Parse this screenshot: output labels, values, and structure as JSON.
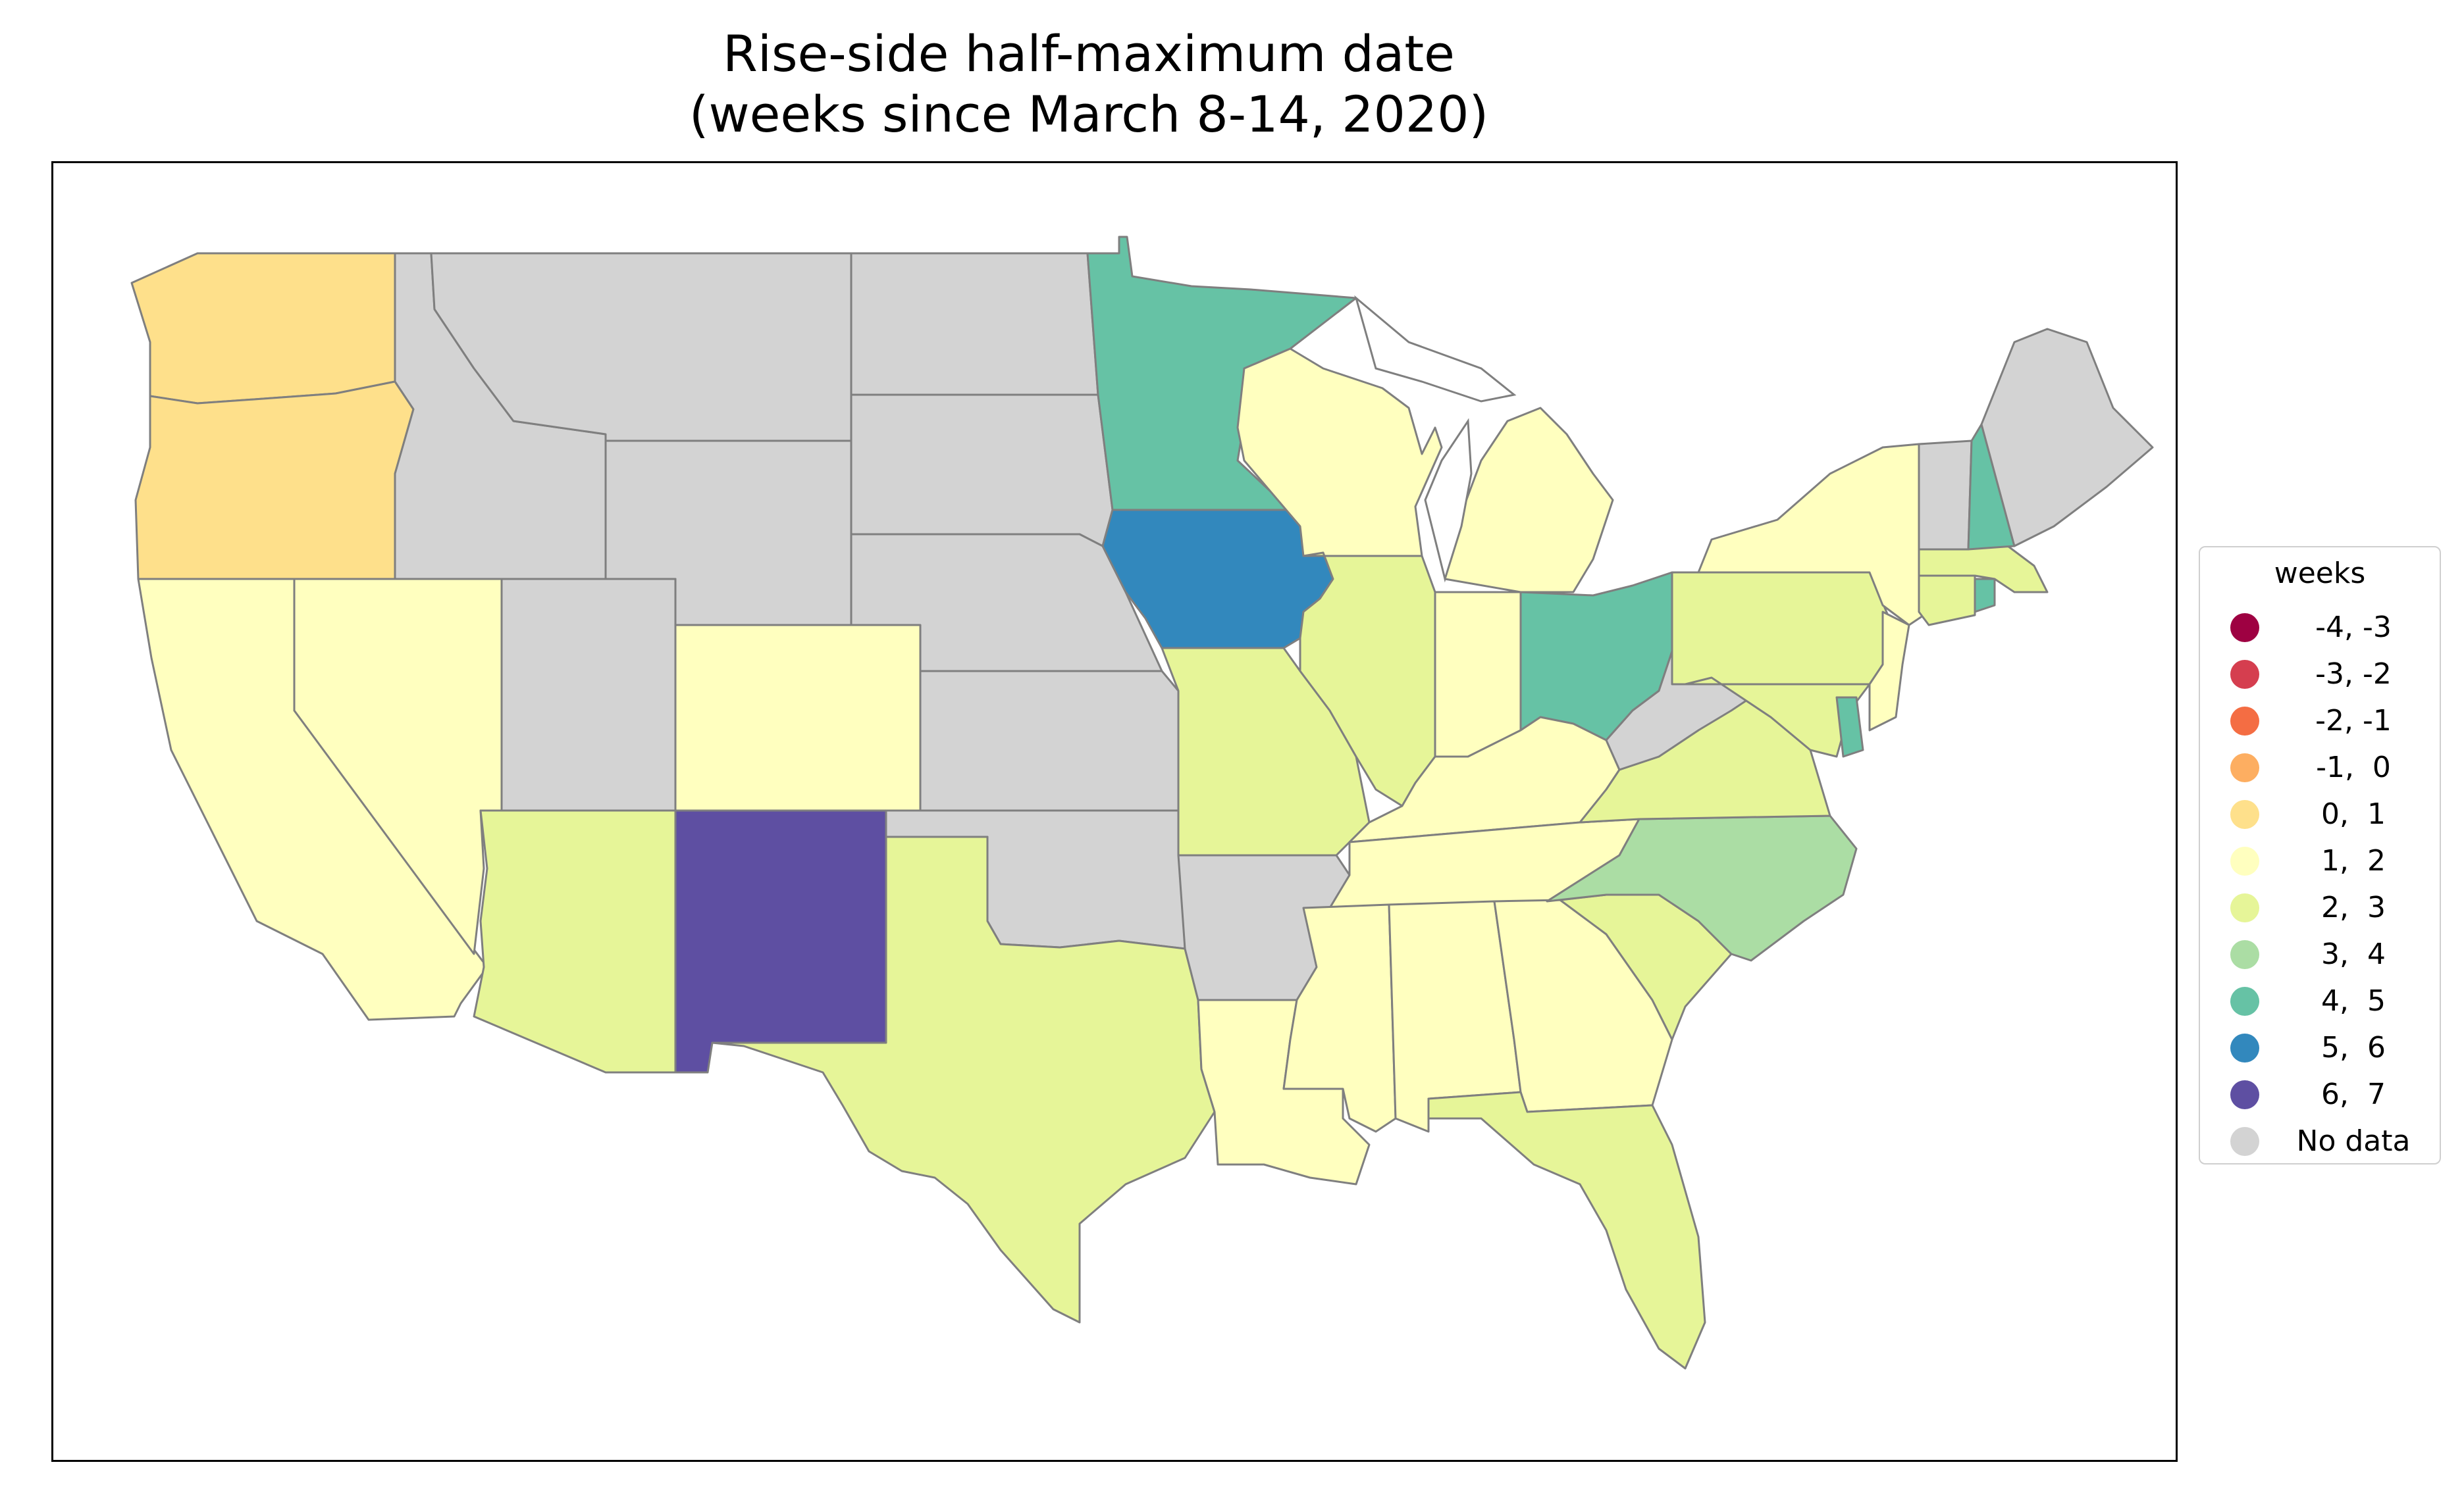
{
  "title": {
    "line1": "Rise-side half-maximum date",
    "line2": "(weeks since March 8-14, 2020)"
  },
  "legend": {
    "title": "weeks",
    "items": [
      {
        "label": "-4, -3",
        "color": "#9e0142"
      },
      {
        "label": "-3, -2",
        "color": "#d53e4f"
      },
      {
        "label": "-2, -1",
        "color": "#f46d43"
      },
      {
        "label": "-1,  0",
        "color": "#fdae61"
      },
      {
        "label": "0,  1",
        "color": "#fee08b"
      },
      {
        "label": "1,  2",
        "color": "#ffffbf"
      },
      {
        "label": "2,  3",
        "color": "#e6f598"
      },
      {
        "label": "3,  4",
        "color": "#abdda4"
      },
      {
        "label": "4,  5",
        "color": "#66c2a5"
      },
      {
        "label": "5,  6",
        "color": "#3288bd"
      },
      {
        "label": "6,  7",
        "color": "#5e4fa2"
      },
      {
        "label": "No data",
        "color": "#d3d3d3"
      }
    ]
  },
  "states": {
    "WA": "0,  1",
    "OR": "0,  1",
    "CA": "1,  2",
    "NV": "1,  2",
    "CO": "1,  2",
    "WI": "1,  2",
    "MI": "1,  2",
    "IN": "1,  2",
    "KY": "1,  2",
    "TN": "1,  2",
    "MS": "1,  2",
    "AL": "1,  2",
    "GA": "1,  2",
    "LA": "1,  2",
    "NY": "1,  2",
    "NJ": "1,  2",
    "AZ": "2,  3",
    "TX": "2,  3",
    "MO": "2,  3",
    "IL": "2,  3",
    "PA": "2,  3",
    "VA": "2,  3",
    "MD": "2,  3",
    "SC": "2,  3",
    "FL": "2,  3",
    "CT": "2,  3",
    "MA": "2,  3",
    "NC": "3,  4",
    "MN": "4,  5",
    "OH": "4,  5",
    "NH": "4,  5",
    "DE": "4,  5",
    "RI": "4,  5",
    "IA": "5,  6",
    "NM": "6,  7",
    "MT": "No data",
    "ID": "No data",
    "WY": "No data",
    "UT": "No data",
    "ND": "No data",
    "SD": "No data",
    "NE": "No data",
    "KS": "No data",
    "OK": "No data",
    "AR": "No data",
    "WV": "No data",
    "VT": "No data",
    "ME": "No data"
  }
}
